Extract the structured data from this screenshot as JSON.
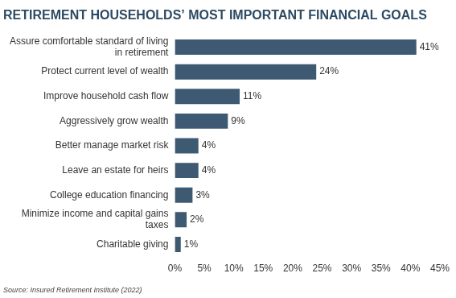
{
  "chart_data": {
    "type": "bar",
    "orientation": "horizontal",
    "title": "RETIREMENT HOUSEHOLDS’ MOST IMPORTANT FINANCIAL GOALS",
    "source": "Source: Insured Retirement Institute (2022)",
    "categories": [
      "Assure comfortable standard of living in retirement",
      "Protect current level of wealth",
      "Improve household cash flow",
      "Aggressively grow wealth",
      "Better manage market risk",
      "Leave an estate for heirs",
      "College education financing",
      "Minimize income and capital gains taxes",
      "Charitable giving"
    ],
    "values": [
      41,
      24,
      11,
      9,
      4,
      4,
      3,
      2,
      1
    ],
    "value_labels": [
      "41%",
      "24%",
      "11%",
      "9%",
      "4%",
      "4%",
      "3%",
      "2%",
      "1%"
    ],
    "data_labels": true,
    "color": "#3e5a73",
    "xlim": [
      0,
      45
    ],
    "xticks": [
      {
        "value": 0,
        "label": "0%"
      },
      {
        "value": 5,
        "label": "5%"
      },
      {
        "value": 10,
        "label": "10%"
      },
      {
        "value": 15,
        "label": "15%"
      },
      {
        "value": 20,
        "label": "20%"
      },
      {
        "value": 25,
        "label": "25%"
      },
      {
        "value": 30,
        "label": "30%"
      },
      {
        "value": 35,
        "label": "35%"
      },
      {
        "value": 40,
        "label": "40%"
      },
      {
        "value": 45,
        "label": "45%"
      }
    ],
    "grid": false
  }
}
